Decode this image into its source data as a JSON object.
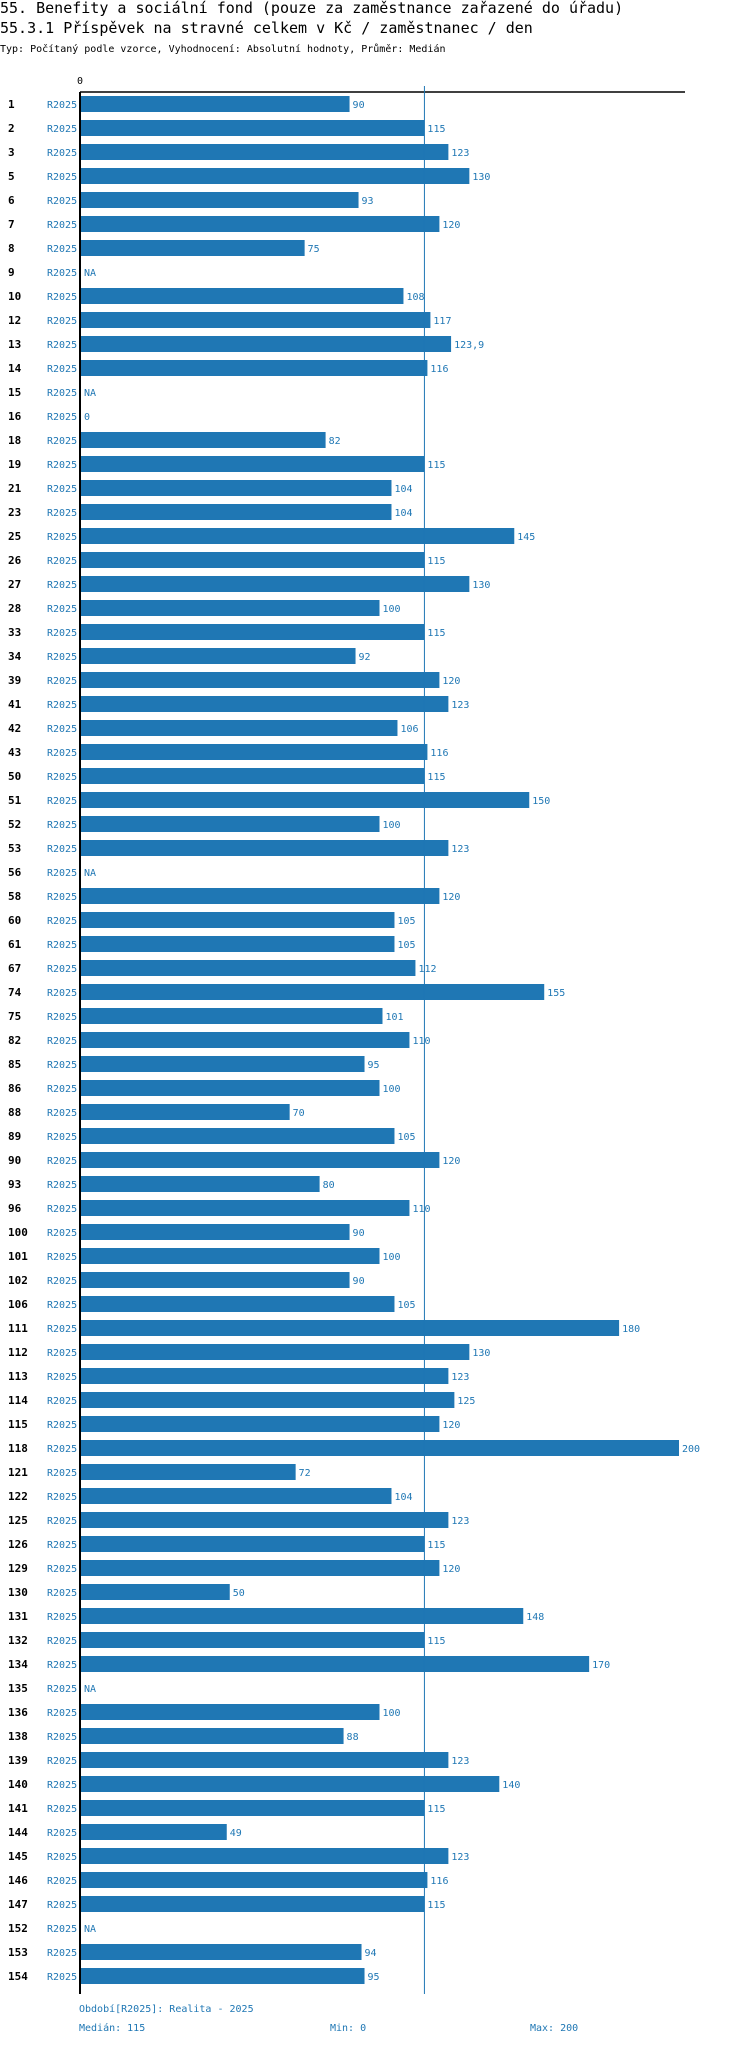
{
  "header": {
    "title": "55. Benefity a sociální fond (pouze za zaměstnance zařazené do úřadu)",
    "subtitle": "55.3.1 Příspěvek na stravné celkem v Kč / zaměstnanec / den",
    "type_line": "Typ: Počítaný podle vzorce, Vyhodnocení: Absolutní hodnoty, Průměr: Medián"
  },
  "chart_data": {
    "type": "bar",
    "orientation": "horizontal",
    "title": "55.3.1 Příspěvek na stravné celkem v Kč / zaměstnanec / den",
    "axis_tick_label": "0",
    "xlim": [
      0,
      200
    ],
    "median": 115,
    "period_label": "R2025",
    "rows": [
      {
        "id": "1",
        "value": 90,
        "label": "90"
      },
      {
        "id": "2",
        "value": 115,
        "label": "115"
      },
      {
        "id": "3",
        "value": 123,
        "label": "123"
      },
      {
        "id": "5",
        "value": 130,
        "label": "130"
      },
      {
        "id": "6",
        "value": 93,
        "label": "93"
      },
      {
        "id": "7",
        "value": 120,
        "label": "120"
      },
      {
        "id": "8",
        "value": 75,
        "label": "75"
      },
      {
        "id": "9",
        "value": null,
        "label": "NA"
      },
      {
        "id": "10",
        "value": 108,
        "label": "108"
      },
      {
        "id": "12",
        "value": 117,
        "label": "117"
      },
      {
        "id": "13",
        "value": 123.9,
        "label": "123,9"
      },
      {
        "id": "14",
        "value": 116,
        "label": "116"
      },
      {
        "id": "15",
        "value": null,
        "label": "NA"
      },
      {
        "id": "16",
        "value": 0,
        "label": "0"
      },
      {
        "id": "18",
        "value": 82,
        "label": "82"
      },
      {
        "id": "19",
        "value": 115,
        "label": "115"
      },
      {
        "id": "21",
        "value": 104,
        "label": "104"
      },
      {
        "id": "23",
        "value": 104,
        "label": "104"
      },
      {
        "id": "25",
        "value": 145,
        "label": "145"
      },
      {
        "id": "26",
        "value": 115,
        "label": "115"
      },
      {
        "id": "27",
        "value": 130,
        "label": "130"
      },
      {
        "id": "28",
        "value": 100,
        "label": "100"
      },
      {
        "id": "33",
        "value": 115,
        "label": "115"
      },
      {
        "id": "34",
        "value": 92,
        "label": "92"
      },
      {
        "id": "39",
        "value": 120,
        "label": "120"
      },
      {
        "id": "41",
        "value": 123,
        "label": "123"
      },
      {
        "id": "42",
        "value": 106,
        "label": "106"
      },
      {
        "id": "43",
        "value": 116,
        "label": "116"
      },
      {
        "id": "50",
        "value": 115,
        "label": "115"
      },
      {
        "id": "51",
        "value": 150,
        "label": "150"
      },
      {
        "id": "52",
        "value": 100,
        "label": "100"
      },
      {
        "id": "53",
        "value": 123,
        "label": "123"
      },
      {
        "id": "56",
        "value": null,
        "label": "NA"
      },
      {
        "id": "58",
        "value": 120,
        "label": "120"
      },
      {
        "id": "60",
        "value": 105,
        "label": "105"
      },
      {
        "id": "61",
        "value": 105,
        "label": "105"
      },
      {
        "id": "67",
        "value": 112,
        "label": "112"
      },
      {
        "id": "74",
        "value": 155,
        "label": "155"
      },
      {
        "id": "75",
        "value": 101,
        "label": "101"
      },
      {
        "id": "82",
        "value": 110,
        "label": "110"
      },
      {
        "id": "85",
        "value": 95,
        "label": "95"
      },
      {
        "id": "86",
        "value": 100,
        "label": "100"
      },
      {
        "id": "88",
        "value": 70,
        "label": "70"
      },
      {
        "id": "89",
        "value": 105,
        "label": "105"
      },
      {
        "id": "90",
        "value": 120,
        "label": "120"
      },
      {
        "id": "93",
        "value": 80,
        "label": "80"
      },
      {
        "id": "96",
        "value": 110,
        "label": "110"
      },
      {
        "id": "100",
        "value": 90,
        "label": "90"
      },
      {
        "id": "101",
        "value": 100,
        "label": "100"
      },
      {
        "id": "102",
        "value": 90,
        "label": "90"
      },
      {
        "id": "106",
        "value": 105,
        "label": "105"
      },
      {
        "id": "111",
        "value": 180,
        "label": "180"
      },
      {
        "id": "112",
        "value": 130,
        "label": "130"
      },
      {
        "id": "113",
        "value": 123,
        "label": "123"
      },
      {
        "id": "114",
        "value": 125,
        "label": "125"
      },
      {
        "id": "115",
        "value": 120,
        "label": "120"
      },
      {
        "id": "118",
        "value": 200,
        "label": "200"
      },
      {
        "id": "121",
        "value": 72,
        "label": "72"
      },
      {
        "id": "122",
        "value": 104,
        "label": "104"
      },
      {
        "id": "125",
        "value": 123,
        "label": "123"
      },
      {
        "id": "126",
        "value": 115,
        "label": "115"
      },
      {
        "id": "129",
        "value": 120,
        "label": "120"
      },
      {
        "id": "130",
        "value": 50,
        "label": "50"
      },
      {
        "id": "131",
        "value": 148,
        "label": "148"
      },
      {
        "id": "132",
        "value": 115,
        "label": "115"
      },
      {
        "id": "134",
        "value": 170,
        "label": "170"
      },
      {
        "id": "135",
        "value": null,
        "label": "NA"
      },
      {
        "id": "136",
        "value": 100,
        "label": "100"
      },
      {
        "id": "138",
        "value": 88,
        "label": "88"
      },
      {
        "id": "139",
        "value": 123,
        "label": "123"
      },
      {
        "id": "140",
        "value": 140,
        "label": "140"
      },
      {
        "id": "141",
        "value": 115,
        "label": "115"
      },
      {
        "id": "144",
        "value": 49,
        "label": "49"
      },
      {
        "id": "145",
        "value": 123,
        "label": "123"
      },
      {
        "id": "146",
        "value": 116,
        "label": "116"
      },
      {
        "id": "147",
        "value": 115,
        "label": "115"
      },
      {
        "id": "152",
        "value": null,
        "label": "NA"
      },
      {
        "id": "153",
        "value": 94,
        "label": "94"
      },
      {
        "id": "154",
        "value": 95,
        "label": "95"
      }
    ],
    "colors": {
      "bar": "#1f77b4",
      "median_line": "#1f77b4",
      "axis": "#000000"
    }
  },
  "footer": {
    "period": "Období[R2025]: Realita - 2025",
    "median": "Medián: 115",
    "min": "Min: 0",
    "max": "Max: 200"
  }
}
